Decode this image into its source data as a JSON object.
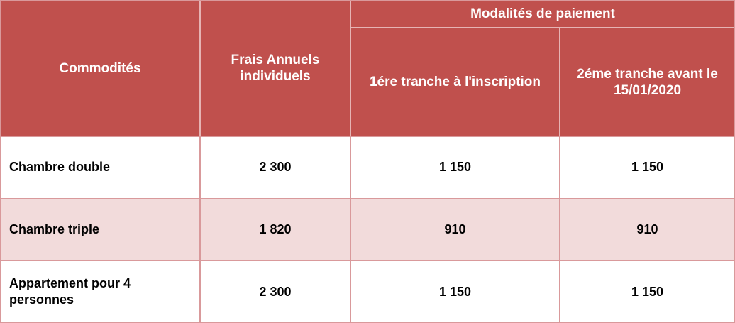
{
  "table": {
    "headers": {
      "commodites": "Commodités",
      "frais": "Frais Annuels individuels",
      "modalites": "Modalités de paiement",
      "tranche1": "1ére tranche à l'inscription",
      "tranche2": "2éme tranche avant le 15/01/2020"
    },
    "rows": [
      {
        "commodite": "Chambre double",
        "frais": "2 300",
        "tranche1": "1 150",
        "tranche2": "1 150"
      },
      {
        "commodite": "Chambre triple",
        "frais": "1 820",
        "tranche1": "910",
        "tranche2": "910"
      },
      {
        "commodite": "Appartement pour 4 personnes",
        "frais": "2 300",
        "tranche1": "1 150",
        "tranche2": "1 150"
      }
    ]
  },
  "colors": {
    "header_bg": "#c0504d",
    "header_text": "#ffffff",
    "row_alt_bg": "#f2dbdb",
    "border": "#d9999b"
  }
}
